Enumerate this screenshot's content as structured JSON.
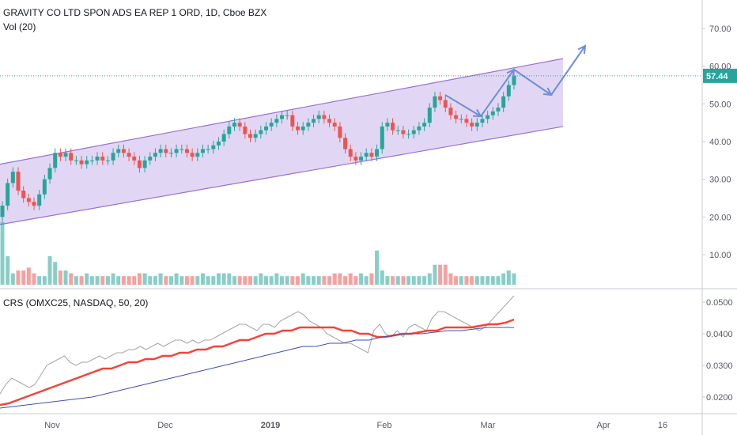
{
  "legend": {
    "symbol": "GRAVITY CO LTD SPON ADS EA REP 1 ORD, 1D, Cboe BZX",
    "volume": "Vol (20)",
    "indicator": "CRS (OMXC25, NASDAQ, 50, 20)"
  },
  "last_price": "57.44",
  "colors": {
    "up": "#26a69a",
    "down": "#ef5350",
    "channel_fill": "#d7c9f0",
    "channel_line": "#9c6fd1",
    "crs_gray": "#a6a6a6",
    "crs_red": "#f44336",
    "crs_blue": "#3f51b5",
    "last_price_bg": "#26a69a",
    "arrows": "#6f8ed6"
  },
  "chart_data": [
    {
      "type": "candlestick",
      "title": "GRAVITY CO LTD SPON ADS EA REP 1 ORD, 1D, Cboe BZX",
      "price_ticks": [
        "70.00",
        "60.00",
        "50.00",
        "40.00",
        "30.00",
        "20.00",
        "10.00"
      ],
      "price_tick_values": [
        70,
        60,
        50,
        40,
        30,
        20,
        10
      ],
      "time_ticks": [
        "Nov",
        "Dec",
        "2019",
        "Feb",
        "Mar",
        "Apr",
        "16"
      ],
      "ylim": [
        0,
        75
      ],
      "last_price": 57.44,
      "close": [
        23,
        29,
        32,
        27,
        25,
        24,
        23,
        26,
        30,
        33,
        37,
        36,
        37,
        35,
        35,
        34,
        35,
        35,
        36,
        35,
        35,
        37,
        38,
        37,
        36,
        35,
        33,
        35,
        36,
        37,
        38,
        37,
        37,
        38,
        38,
        37,
        36,
        37,
        38,
        38,
        39,
        40,
        42,
        44,
        45,
        44,
        42,
        41,
        42,
        43,
        44,
        45,
        46,
        47,
        47,
        44,
        43,
        44,
        45,
        46,
        47,
        46,
        45,
        44,
        41,
        38,
        36,
        35,
        36,
        37,
        36,
        38,
        44,
        45,
        43,
        43,
        42,
        42,
        43,
        44,
        45,
        49,
        52,
        51,
        49,
        47,
        46,
        46,
        45,
        44,
        45,
        46,
        47,
        48,
        49,
        52,
        55,
        57.44
      ],
      "channel": {
        "start": [
          18,
          34
        ],
        "end": [
          44,
          62
        ]
      },
      "annotation_arrows": "projected zig-zag path drawn over the last weeks"
    },
    {
      "type": "bar",
      "title": "Vol (20)",
      "volume_tick": "10.00",
      "values": [
        22,
        10,
        4,
        5,
        5,
        6,
        4,
        3,
        3,
        10,
        8,
        5,
        5,
        4,
        3,
        3,
        4,
        3,
        3,
        3,
        3,
        4,
        3,
        3,
        3,
        3,
        4,
        4,
        3,
        3,
        4,
        3,
        3,
        4,
        3,
        3,
        3,
        3,
        4,
        3,
        3,
        4,
        4,
        4,
        3,
        3,
        3,
        3,
        3,
        4,
        3,
        3,
        4,
        3,
        3,
        3,
        3,
        4,
        3,
        3,
        3,
        3,
        3,
        4,
        4,
        3,
        4,
        3,
        4,
        3,
        4,
        12,
        5,
        3,
        3,
        3,
        3,
        3,
        3,
        3,
        3,
        4,
        7,
        7,
        7,
        4,
        3,
        3,
        3,
        3,
        3,
        3,
        3,
        3,
        3,
        4,
        5,
        4
      ]
    },
    {
      "type": "line",
      "title": "CRS (OMXC25, NASDAQ, 50, 20)",
      "ticks": [
        "0.0500",
        "0.0400",
        "0.0300",
        "0.0200"
      ],
      "tick_values": [
        0.05,
        0.04,
        0.03,
        0.02
      ],
      "ylim": [
        0.016,
        0.053
      ],
      "series": [
        {
          "name": "",
          "values": [
            0.021,
            0.024,
            0.026,
            0.025,
            0.024,
            0.023,
            0.024,
            0.027,
            0.03,
            0.031,
            0.032,
            0.033,
            0.031,
            0.03,
            0.031,
            0.031,
            0.032,
            0.033,
            0.032,
            0.033,
            0.034,
            0.034,
            0.035,
            0.035,
            0.036,
            0.035,
            0.036,
            0.037,
            0.036,
            0.037,
            0.038,
            0.038,
            0.037,
            0.038,
            0.037,
            0.038,
            0.038,
            0.039,
            0.04,
            0.041,
            0.042,
            0.043,
            0.043,
            0.042,
            0.041,
            0.043,
            0.043,
            0.042,
            0.044,
            0.045,
            0.046,
            0.047,
            0.046,
            0.044,
            0.043,
            0.042,
            0.04,
            0.039,
            0.038,
            0.037,
            0.037,
            0.036,
            0.035,
            0.034,
            0.041,
            0.043,
            0.04,
            0.039,
            0.041,
            0.039,
            0.042,
            0.043,
            0.042,
            0.041,
            0.045,
            0.047,
            0.047,
            0.046,
            0.045,
            0.044,
            0.043,
            0.042,
            0.041,
            0.042,
            0.044,
            0.046,
            0.048,
            0.05,
            0.052
          ]
        },
        {
          "name": "",
          "values": [
            0.0175,
            0.018,
            0.019,
            0.02,
            0.021,
            0.022,
            0.023,
            0.024,
            0.025,
            0.026,
            0.027,
            0.028,
            0.029,
            0.029,
            0.03,
            0.031,
            0.031,
            0.032,
            0.032,
            0.033,
            0.033,
            0.034,
            0.034,
            0.035,
            0.035,
            0.036,
            0.036,
            0.037,
            0.038,
            0.038,
            0.039,
            0.04,
            0.04,
            0.041,
            0.041,
            0.042,
            0.042,
            0.042,
            0.042,
            0.042,
            0.041,
            0.041,
            0.04,
            0.04,
            0.039,
            0.039,
            0.0395,
            0.04,
            0.04,
            0.0405,
            0.041,
            0.041,
            0.042,
            0.042,
            0.042,
            0.042,
            0.0425,
            0.043,
            0.043,
            0.0435,
            0.0445
          ]
        },
        {
          "name": "",
          "values": [
            0.0165,
            0.017,
            0.0175,
            0.018,
            0.0185,
            0.019,
            0.0195,
            0.02,
            0.021,
            0.022,
            0.023,
            0.024,
            0.025,
            0.026,
            0.027,
            0.028,
            0.029,
            0.03,
            0.031,
            0.032,
            0.033,
            0.034,
            0.035,
            0.036,
            0.036,
            0.037,
            0.037,
            0.038,
            0.038,
            0.039,
            0.0395,
            0.04,
            0.04,
            0.0405,
            0.041,
            0.041,
            0.0415,
            0.042,
            0.042,
            0.042
          ]
        }
      ]
    }
  ]
}
